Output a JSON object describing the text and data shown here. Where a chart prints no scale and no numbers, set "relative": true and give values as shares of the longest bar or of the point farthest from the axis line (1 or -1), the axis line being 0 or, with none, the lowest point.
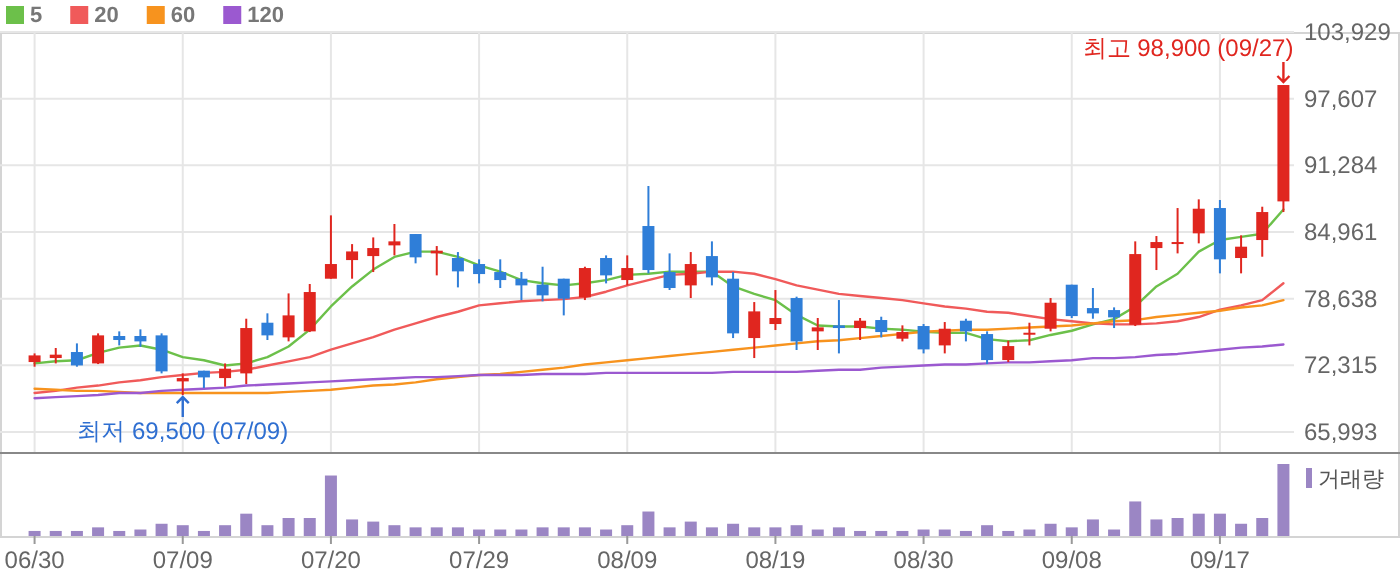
{
  "chart_data": [
    {
      "type": "candlestick",
      "categories": [
        "06/30",
        null,
        null,
        null,
        null,
        null,
        null,
        "07/09",
        null,
        null,
        null,
        null,
        null,
        null,
        "07/20",
        null,
        null,
        null,
        null,
        null,
        null,
        "07/29",
        null,
        null,
        null,
        null,
        null,
        null,
        "08/09",
        null,
        null,
        null,
        null,
        null,
        null,
        "08/19",
        null,
        null,
        null,
        null,
        null,
        null,
        "08/30",
        null,
        null,
        null,
        null,
        null,
        null,
        "09/08",
        null,
        null,
        null,
        null,
        null,
        null,
        "09/17",
        null,
        null,
        null
      ],
      "ohlc": [
        [
          72630,
          73450,
          72190,
          73260
        ],
        [
          73010,
          73960,
          72500,
          73330
        ],
        [
          73580,
          74400,
          72190,
          72310
        ],
        [
          72500,
          75350,
          72440,
          75160
        ],
        [
          75100,
          75540,
          74210,
          74720
        ],
        [
          75100,
          75730,
          74080,
          74590
        ],
        [
          75160,
          75350,
          71555,
          71745
        ],
        [
          70796,
          71555,
          69500,
          71110
        ],
        [
          71810,
          71810,
          70165,
          71175
        ],
        [
          71110,
          72500,
          70290,
          72000
        ],
        [
          71555,
          76740,
          70545,
          75855
        ],
        [
          76360,
          77250,
          74720,
          75160
        ],
        [
          74970,
          79140,
          74590,
          77055
        ],
        [
          75540,
          80030,
          75475,
          79270
        ],
        [
          80534,
          86540,
          80534,
          81925
        ],
        [
          82300,
          83815,
          80534,
          83120
        ],
        [
          82680,
          84450,
          81165,
          83440
        ],
        [
          83695,
          85720,
          82745,
          84075
        ],
        [
          84770,
          84770,
          81990,
          82560
        ],
        [
          82935,
          83630,
          80850,
          83190
        ],
        [
          82495,
          83060,
          79710,
          81230
        ],
        [
          81925,
          82370,
          80090,
          80975
        ],
        [
          81165,
          82370,
          79650,
          80405
        ],
        [
          80535,
          81165,
          78510,
          79900
        ],
        [
          79965,
          81670,
          78385,
          78955
        ],
        [
          80535,
          80535,
          77055,
          78640
        ],
        [
          78765,
          81670,
          78510,
          81545
        ],
        [
          82495,
          82745,
          80090,
          80850
        ],
        [
          80405,
          82745,
          79900,
          81545
        ],
        [
          85530,
          89325,
          81040,
          81355
        ],
        [
          81165,
          82935,
          79460,
          79650
        ],
        [
          79900,
          83060,
          78700,
          81925
        ],
        [
          82680,
          84075,
          79900,
          80660
        ],
        [
          80535,
          81165,
          74905,
          75350
        ],
        [
          74905,
          78320,
          73010,
          77435
        ],
        [
          76235,
          79460,
          75665,
          76805
        ],
        [
          78700,
          78830,
          73770,
          74590
        ],
        [
          75540,
          76805,
          73770,
          75920
        ],
        [
          76110,
          78510,
          73450,
          75855
        ],
        [
          75855,
          76805,
          74720,
          76550
        ],
        [
          76615,
          76930,
          74970,
          75475
        ],
        [
          74845,
          76110,
          74590,
          75475
        ],
        [
          76045,
          76235,
          73450,
          73830
        ],
        [
          74210,
          76425,
          73450,
          75790
        ],
        [
          76550,
          76740,
          74590,
          75540
        ],
        [
          75285,
          75540,
          72440,
          72820
        ],
        [
          72820,
          74650,
          72630,
          74145
        ],
        [
          75285,
          76360,
          74210,
          75410
        ],
        [
          75790,
          78700,
          75540,
          78255
        ],
        [
          79965,
          79965,
          76805,
          76990
        ],
        [
          77750,
          79650,
          76740,
          77245
        ],
        [
          77560,
          77815,
          75855,
          76865
        ],
        [
          76170,
          84075,
          76045,
          82870
        ],
        [
          83440,
          84580,
          81355,
          84010
        ],
        [
          83820,
          87235,
          82935,
          84010
        ],
        [
          84835,
          88060,
          83885,
          87170
        ],
        [
          87235,
          87995,
          81040,
          82370
        ],
        [
          82495,
          84645,
          81040,
          83570
        ],
        [
          84200,
          87360,
          82620,
          86855
        ],
        [
          87865,
          98900,
          86855,
          98900
        ]
      ],
      "colors": [
        "#e0261f",
        "#e0261f",
        "#2f7ed8",
        "#e0261f",
        "#2f7ed8",
        "#2f7ed8",
        "#2f7ed8",
        "#e0261f",
        "#2f7ed8",
        "#e0261f",
        "#e0261f",
        "#2f7ed8",
        "#e0261f",
        "#e0261f",
        "#e0261f",
        "#e0261f",
        "#e0261f",
        "#e0261f",
        "#2f7ed8",
        "#e0261f",
        "#2f7ed8",
        "#2f7ed8",
        "#2f7ed8",
        "#2f7ed8",
        "#2f7ed8",
        "#2f7ed8",
        "#e0261f",
        "#2f7ed8",
        "#e0261f",
        "#2f7ed8",
        "#2f7ed8",
        "#e0261f",
        "#2f7ed8",
        "#2f7ed8",
        "#e0261f",
        "#e0261f",
        "#2f7ed8",
        "#e0261f",
        "#2f7ed8",
        "#e0261f",
        "#2f7ed8",
        "#e0261f",
        "#2f7ed8",
        "#e0261f",
        "#2f7ed8",
        "#2f7ed8",
        "#e0261f",
        "#e0261f",
        "#e0261f",
        "#2f7ed8",
        "#2f7ed8",
        "#2f7ed8",
        "#e0261f",
        "#e0261f",
        "#e0261f",
        "#e0261f",
        "#2f7ed8",
        "#e0261f",
        "#e0261f",
        "#e0261f"
      ],
      "series": [
        {
          "name": "5",
          "type": "line",
          "color": "#6cc04a",
          "values": [
            72500,
            72700,
            72800,
            73500,
            74000,
            74200,
            73800,
            73100,
            72800,
            72300,
            72500,
            73100,
            74100,
            75700,
            77900,
            79800,
            81400,
            82600,
            83100,
            83100,
            82600,
            81800,
            81200,
            80400,
            80100,
            79900,
            80100,
            80400,
            80900,
            81000,
            81200,
            81200,
            81200,
            79800,
            79100,
            78500,
            77100,
            76100,
            76000,
            76000,
            75800,
            75700,
            75500,
            75400,
            75400,
            74800,
            74600,
            74700,
            75200,
            75600,
            76200,
            76700,
            77900,
            79800,
            81000,
            83100,
            84200,
            84500,
            84800,
            87100
          ]
        },
        {
          "name": "20",
          "type": "line",
          "color": "#f05a5a",
          "values": [
            69700,
            69900,
            70200,
            70400,
            70700,
            70900,
            71200,
            71400,
            71600,
            71700,
            71900,
            72300,
            72700,
            73100,
            73800,
            74400,
            75000,
            75700,
            76300,
            76900,
            77400,
            78000,
            78200,
            78400,
            78500,
            78600,
            78800,
            79300,
            79900,
            80400,
            80900,
            81000,
            81200,
            81200,
            81000,
            80500,
            79900,
            79500,
            79100,
            78900,
            78700,
            78500,
            78200,
            77900,
            77700,
            77400,
            77300,
            77000,
            76700,
            76500,
            76300,
            76200,
            76200,
            76300,
            76500,
            76900,
            77600,
            78000,
            78500,
            80100
          ]
        },
        {
          "name": "60",
          "type": "line",
          "color": "#f7931e",
          "values": [
            70100,
            70000,
            69900,
            69900,
            69800,
            69700,
            69700,
            69700,
            69700,
            69700,
            69700,
            69700,
            69800,
            69900,
            70000,
            70200,
            70400,
            70500,
            70700,
            71000,
            71200,
            71400,
            71500,
            71700,
            71900,
            72100,
            72400,
            72600,
            72800,
            73000,
            73200,
            73400,
            73600,
            73800,
            74000,
            74200,
            74400,
            74600,
            74700,
            74900,
            75100,
            75300,
            75500,
            75600,
            75700,
            75700,
            75800,
            75900,
            76000,
            76100,
            76300,
            76500,
            76600,
            76900,
            77100,
            77300,
            77500,
            77800,
            78000,
            78500
          ]
        },
        {
          "name": "120",
          "type": "line",
          "color": "#9b59d0",
          "values": [
            69200,
            69300,
            69400,
            69500,
            69700,
            69700,
            69900,
            70000,
            70100,
            70200,
            70400,
            70500,
            70600,
            70700,
            70800,
            70900,
            71000,
            71100,
            71200,
            71200,
            71300,
            71400,
            71400,
            71400,
            71500,
            71500,
            71500,
            71600,
            71600,
            71600,
            71600,
            71600,
            71600,
            71700,
            71700,
            71700,
            71700,
            71800,
            71900,
            71900,
            72100,
            72200,
            72300,
            72400,
            72400,
            72500,
            72600,
            72600,
            72700,
            72800,
            73000,
            73000,
            73100,
            73300,
            73400,
            73600,
            73800,
            74000,
            74100,
            74300
          ]
        }
      ],
      "ylim": [
        64100,
        103929
      ],
      "yticks": [
        {
          "value": 65993,
          "label": "65,993"
        },
        {
          "value": 72315,
          "label": "72,315"
        },
        {
          "value": 78638,
          "label": "78,638"
        },
        {
          "value": 84961,
          "label": "84,961"
        },
        {
          "value": 91284,
          "label": "91,284"
        },
        {
          "value": 97607,
          "label": "97,607"
        },
        {
          "value": 103929,
          "label": "103,929"
        }
      ],
      "grid": true,
      "legend": "top left",
      "tick_labels": "y",
      "annotations": [
        "최고 98,900 (09/27)",
        {
          "text": "최저 69,500 (07/09)",
          "x": "07/09",
          "y": 69500
        }
      ]
    },
    {
      "type": "bar",
      "relative": true,
      "categories": [
        "06/30",
        null,
        null,
        null,
        null,
        null,
        null,
        "07/09",
        null,
        null,
        null,
        null,
        null,
        null,
        "07/20",
        null,
        null,
        null,
        null,
        null,
        null,
        "07/29",
        null,
        null,
        null,
        null,
        null,
        null,
        "08/09",
        null,
        null,
        null,
        null,
        null,
        null,
        "08/19",
        null,
        null,
        null,
        null,
        null,
        null,
        "08/30",
        null,
        null,
        null,
        null,
        null,
        null,
        "09/08",
        null,
        null,
        null,
        null,
        null,
        null,
        "09/17",
        null,
        null,
        null
      ],
      "series": [
        {
          "name": "거래량",
          "color": "#9b86c4",
          "values": [
            0.07,
            0.07,
            0.07,
            0.12,
            0.07,
            0.09,
            0.17,
            0.15,
            0.07,
            0.15,
            0.31,
            0.15,
            0.25,
            0.25,
            0.84,
            0.23,
            0.2,
            0.15,
            0.12,
            0.12,
            0.12,
            0.09,
            0.09,
            0.09,
            0.12,
            0.12,
            0.12,
            0.09,
            0.15,
            0.34,
            0.12,
            0.2,
            0.12,
            0.17,
            0.12,
            0.12,
            0.15,
            0.09,
            0.12,
            0.07,
            0.07,
            0.07,
            0.09,
            0.09,
            0.07,
            0.15,
            0.07,
            0.09,
            0.17,
            0.12,
            0.23,
            0.09,
            0.48,
            0.23,
            0.25,
            0.31,
            0.31,
            0.17,
            0.25,
            1
          ]
        }
      ],
      "legend": "top right",
      "tick_labels": "x"
    }
  ]
}
